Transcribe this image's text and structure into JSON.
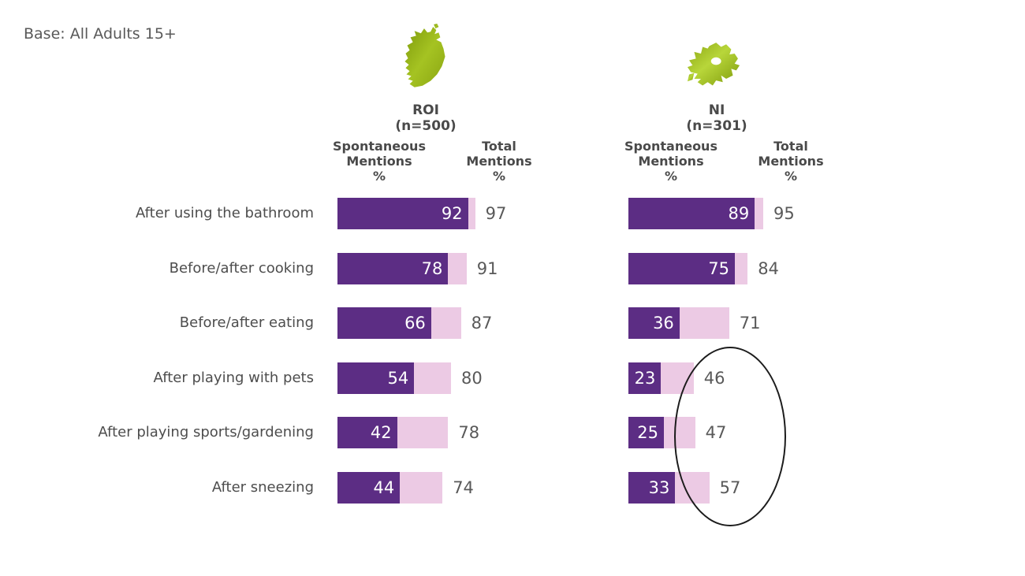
{
  "base_note": "Base: All Adults 15+",
  "groups": [
    {
      "region": "ROI",
      "n_label": "(n=500)",
      "col1_lines": [
        "Spontaneous",
        "Mentions",
        "%"
      ],
      "col2_lines": [
        "Total",
        "Mentions",
        "%"
      ]
    },
    {
      "region": "NI",
      "n_label": "(n=301)",
      "col1_lines": [
        "Spontaneous",
        "Mentions",
        "%"
      ],
      "col2_lines": [
        "Total",
        "Mentions",
        "%"
      ]
    }
  ],
  "chart_data": {
    "type": "bar",
    "orientation": "horizontal",
    "title": "",
    "categories": [
      "After using the bathroom",
      "Before/after cooking",
      "Before/after eating",
      "After playing with pets",
      "After playing sports/gardening",
      "After sneezing"
    ],
    "groups": [
      {
        "name": "ROI (n=500)",
        "series": [
          {
            "name": "Spontaneous Mentions %",
            "values": [
              92,
              78,
              66,
              54,
              42,
              44
            ]
          },
          {
            "name": "Total Mentions %",
            "values": [
              97,
              91,
              87,
              80,
              78,
              74
            ]
          }
        ]
      },
      {
        "name": "NI (n=301)",
        "series": [
          {
            "name": "Spontaneous Mentions %",
            "values": [
              89,
              75,
              36,
              23,
              25,
              33
            ]
          },
          {
            "name": "Total Mentions %",
            "values": [
              95,
              84,
              71,
              46,
              47,
              57
            ]
          }
        ]
      }
    ],
    "value_range": [
      0,
      100
    ],
    "colors": {
      "spontaneous_bar": "#5c2d84",
      "total_bar": "#eccae4",
      "value_text_inside": "#ffffff",
      "total_text": "#595959",
      "map_green_dark": "#8aa512",
      "map_green_light": "#b8d63a"
    },
    "annotation": {
      "shape": "ellipse",
      "around": "NI Total Mentions values 46, 47 and 57"
    }
  }
}
